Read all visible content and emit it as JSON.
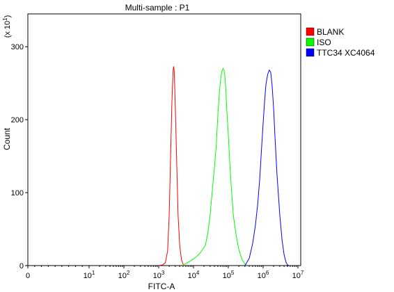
{
  "chart_data": {
    "type": "histogram",
    "title": "Multi-sample : P1",
    "xlabel": "FITC-A",
    "ylabel": "Count",
    "y_multiplier_label": {
      "base": "(x 10",
      "exp": "1",
      "close": ")"
    },
    "x_scale": "log",
    "x_ticks": [
      {
        "value": 0,
        "label": "0",
        "exp": ""
      },
      {
        "value": 10,
        "label": "10",
        "exp": "1"
      },
      {
        "value": 100,
        "label": "10",
        "exp": "2"
      },
      {
        "value": 1000,
        "label": "10",
        "exp": "3"
      },
      {
        "value": 10000,
        "label": "10",
        "exp": "4"
      },
      {
        "value": 100000,
        "label": "10",
        "exp": "5"
      },
      {
        "value": 1000000,
        "label": "10",
        "exp": "6"
      },
      {
        "value": 10000000,
        "label": "10",
        "exp": "7"
      }
    ],
    "y_ticks": [
      0,
      100,
      200,
      300
    ],
    "ylim": [
      0,
      345
    ],
    "legend_position": "right",
    "series": [
      {
        "name": "BLANK",
        "color": "#ff0000",
        "points": [
          [
            1000,
            0
          ],
          [
            1300,
            1
          ],
          [
            1550,
            4
          ],
          [
            1800,
            20
          ],
          [
            2000,
            70
          ],
          [
            2200,
            150
          ],
          [
            2400,
            225
          ],
          [
            2600,
            268
          ],
          [
            2700,
            273
          ],
          [
            2800,
            265
          ],
          [
            3000,
            215
          ],
          [
            3300,
            140
          ],
          [
            3600,
            70
          ],
          [
            4000,
            28
          ],
          [
            4500,
            8
          ],
          [
            5000,
            2
          ],
          [
            5500,
            0
          ]
        ]
      },
      {
        "name": "ISO",
        "color": "#00ff00",
        "points": [
          [
            5000,
            0
          ],
          [
            6000,
            3
          ],
          [
            8000,
            6
          ],
          [
            12000,
            12
          ],
          [
            16000,
            18
          ],
          [
            22000,
            28
          ],
          [
            26000,
            45
          ],
          [
            30000,
            70
          ],
          [
            35000,
            105
          ],
          [
            40000,
            135
          ],
          [
            45000,
            165
          ],
          [
            50000,
            205
          ],
          [
            55000,
            235
          ],
          [
            60000,
            255
          ],
          [
            65000,
            266
          ],
          [
            70000,
            270
          ],
          [
            75000,
            268
          ],
          [
            80000,
            258
          ],
          [
            85000,
            240
          ],
          [
            90000,
            215
          ],
          [
            100000,
            180
          ],
          [
            110000,
            140
          ],
          [
            125000,
            100
          ],
          [
            140000,
            68
          ],
          [
            170000,
            40
          ],
          [
            200000,
            22
          ],
          [
            250000,
            8
          ],
          [
            300000,
            2
          ],
          [
            330000,
            0
          ]
        ]
      },
      {
        "name": "TTC34 XC4064",
        "color": "#0000ff",
        "points": [
          [
            300000,
            0
          ],
          [
            400000,
            10
          ],
          [
            500000,
            30
          ],
          [
            600000,
            55
          ],
          [
            700000,
            85
          ],
          [
            800000,
            120
          ],
          [
            900000,
            160
          ],
          [
            1000000,
            195
          ],
          [
            1100000,
            225
          ],
          [
            1200000,
            248
          ],
          [
            1350000,
            262
          ],
          [
            1500000,
            268
          ],
          [
            1650000,
            265
          ],
          [
            1800000,
            248
          ],
          [
            2000000,
            215
          ],
          [
            2200000,
            175
          ],
          [
            2500000,
            125
          ],
          [
            3000000,
            70
          ],
          [
            3500000,
            35
          ],
          [
            4000000,
            15
          ],
          [
            4500000,
            5
          ],
          [
            5000000,
            1
          ],
          [
            5600000,
            0
          ]
        ]
      }
    ]
  }
}
